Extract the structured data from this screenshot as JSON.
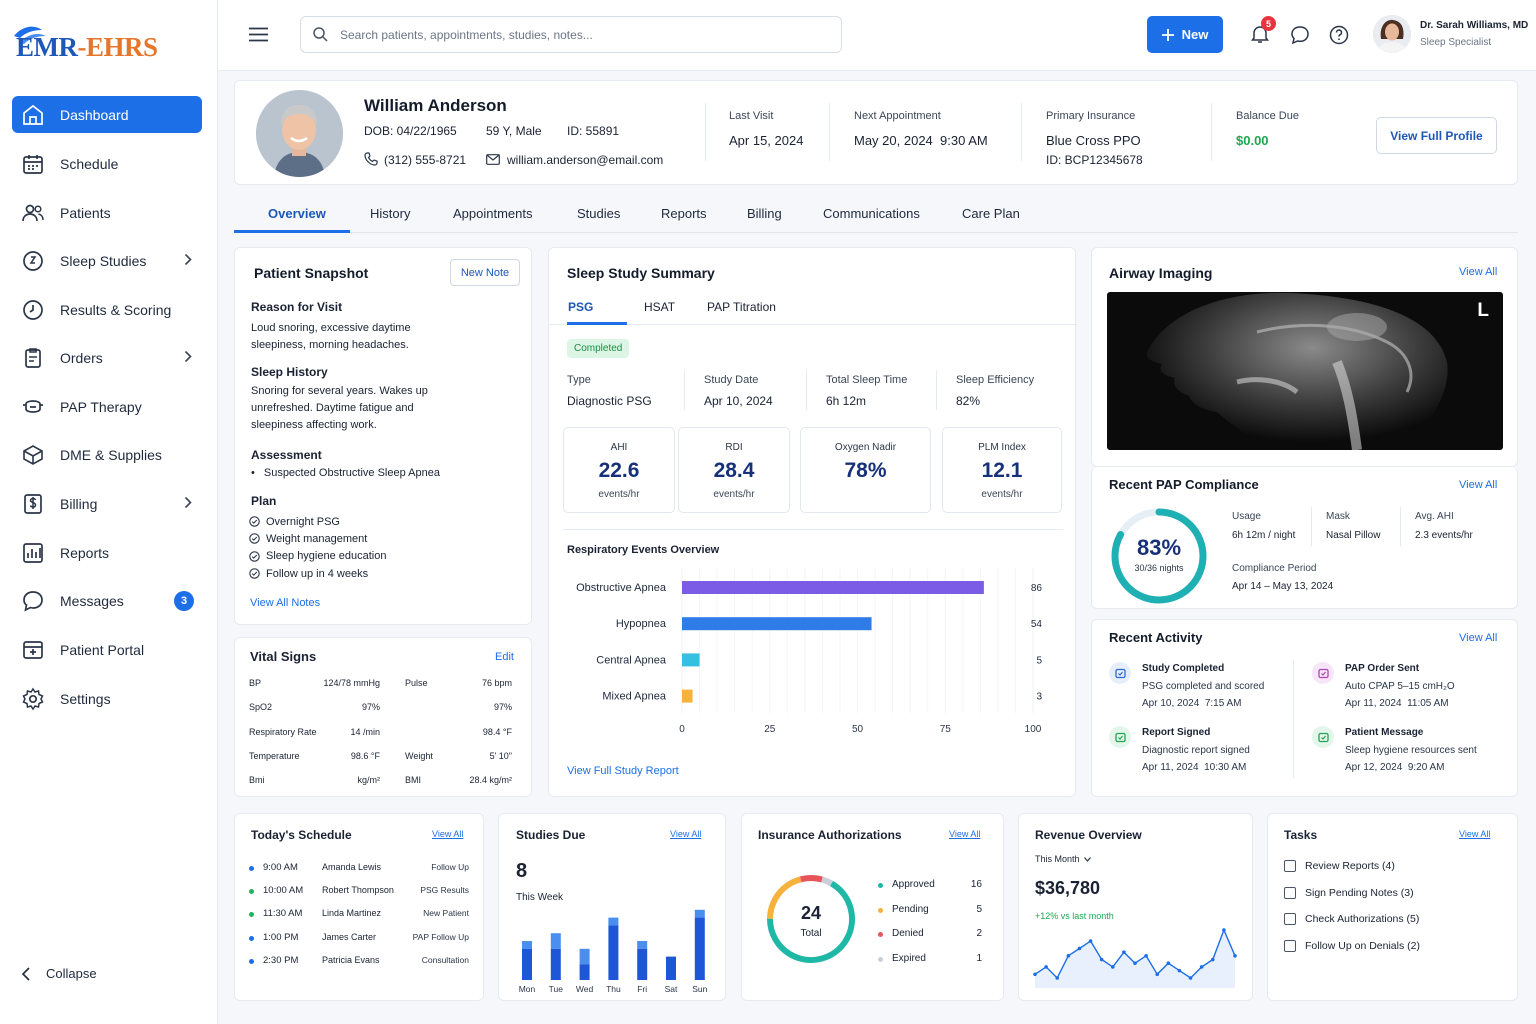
{
  "app": {
    "logo_text": "EMR-EHRS"
  },
  "sidebar": {
    "items": [
      {
        "label": "Dashboard",
        "icon": "home-icon"
      },
      {
        "label": "Schedule",
        "icon": "calendar-icon"
      },
      {
        "label": "Patients",
        "icon": "users-icon"
      },
      {
        "label": "Sleep Studies",
        "icon": "sleep-icon"
      },
      {
        "label": "Results & Scoring",
        "icon": "clock-icon"
      },
      {
        "label": "Orders",
        "icon": "clipboard-icon"
      },
      {
        "label": "PAP Therapy",
        "icon": "mask-icon"
      },
      {
        "label": "DME & Supplies",
        "icon": "box-icon"
      },
      {
        "label": "Billing",
        "icon": "dollar-icon"
      },
      {
        "label": "Reports",
        "icon": "bar-chart-icon"
      },
      {
        "label": "Messages",
        "icon": "chat-icon"
      },
      {
        "label": "Patient Portal",
        "icon": "portal-icon"
      },
      {
        "label": "Settings",
        "icon": "gear-icon"
      }
    ],
    "messages_badge": "3",
    "collapse_label": "Collapse"
  },
  "header": {
    "search_placeholder": "Search patients, appointments, studies, notes...",
    "new_button": "New",
    "notification_count": "5",
    "user_name": "Dr. Sarah Williams, MD",
    "user_role": "Sleep Specialist"
  },
  "patient": {
    "name": "William Anderson",
    "dob": "DOB: 04/22/1965",
    "age_sex": "59 Y, Male",
    "id": "ID: 55891",
    "phone": "(312) 555-8721",
    "email": "william.anderson@email.com",
    "last_visit_label": "Last Visit",
    "last_visit": "Apr 15, 2024",
    "next_appt_label": "Next Appointment",
    "next_appt": "May 20, 2024  9:30 AM",
    "insurance_label": "Primary Insurance",
    "insurance": "Blue Cross PPO",
    "insurance_id": "ID: BCP12345678",
    "balance_label": "Balance Due",
    "balance": "$0.00",
    "view_profile": "View Full Profile"
  },
  "tabs": [
    "Overview",
    "History",
    "Appointments",
    "Studies",
    "Reports",
    "Billing",
    "Communications",
    "Care Plan"
  ],
  "snapshot": {
    "title": "Patient Snapshot",
    "new_note": "New Note",
    "reason_title": "Reason for Visit",
    "reason_l1": "Loud snoring, excessive daytime",
    "reason_l2": "sleepiness, morning headaches.",
    "history_title": "Sleep History",
    "history_l1": "Snoring for several years. Wakes up",
    "history_l2": "unrefreshed. Daytime fatigue and",
    "history_l3": "sleepiness affecting work.",
    "assessment_title": "Assessment",
    "assessment_item": "Suspected Obstructive Sleep Apnea",
    "plan_title": "Plan",
    "plan": [
      "Overnight PSG",
      "Weight management",
      "Sleep hygiene education",
      "Follow up in 4 weeks"
    ],
    "view_all": "View All Notes"
  },
  "vitals": {
    "title": "Vital Signs",
    "edit": "Edit",
    "rows": [
      {
        "l1": "BP",
        "v1": "124/78 mmHg",
        "l2": "Pulse",
        "v2": "76 bpm"
      },
      {
        "l1": "SpO2",
        "v1": "97%",
        "l2": "",
        "v2": "97%"
      },
      {
        "l1": "Respiratory Rate",
        "v1": "14 /min",
        "l2": "",
        "v2": "98.4 °F"
      },
      {
        "l1": "Temperature",
        "v1": "98.6 °F",
        "l2": "Weight",
        "v2": "5' 10\""
      },
      {
        "l1": "Bmi",
        "v1": "kg/m²",
        "l2": "BMI",
        "v2": "28.4 kg/m²"
      }
    ]
  },
  "study": {
    "title": "Sleep Study Summary",
    "subtabs": [
      "PSG",
      "HSAT",
      "PAP Titration"
    ],
    "status": "Completed",
    "type_label": "Type",
    "type": "Diagnostic PSG",
    "date_label": "Study Date",
    "date": "Apr 10, 2024",
    "tst_label": "Total Sleep Time",
    "tst": "6h 12m",
    "eff_label": "Sleep Efficiency",
    "eff": "82%",
    "metrics": [
      {
        "label": "AHI",
        "value": "22.6",
        "unit": "events/hr"
      },
      {
        "label": "RDI",
        "value": "28.4",
        "unit": "events/hr"
      },
      {
        "label": "Oxygen Nadir",
        "value": "78%",
        "unit": ""
      },
      {
        "label": "PLM Index",
        "value": "12.1",
        "unit": "events/hr"
      }
    ],
    "chart_title": "Respiratory Events Overview",
    "view_report": "View Full Study Report"
  },
  "chart_data": {
    "type": "bar",
    "orientation": "horizontal",
    "title": "Respiratory Events Overview",
    "categories": [
      "Obstructive Apnea",
      "Hypopnea",
      "Central Apnea",
      "Mixed Apnea"
    ],
    "values": [
      86,
      54,
      5,
      3
    ],
    "colors": [
      "#7b5ce6",
      "#2f7ce8",
      "#34c0e0",
      "#f5b33d"
    ],
    "xlim": [
      0,
      100
    ],
    "xticks": [
      0,
      25,
      50,
      75,
      100
    ],
    "grid": true
  },
  "airway": {
    "title": "Airway Imaging",
    "view_all": "View All",
    "marker": "L"
  },
  "compliance": {
    "title": "Recent PAP Compliance",
    "view_all": "View All",
    "percent": "83%",
    "percent_value": 83,
    "nights": "30/36 nights",
    "usage_label": "Usage",
    "usage": "6h 12m / night",
    "mask_label": "Mask",
    "mask": "Nasal Pillow",
    "ahi_label": "Avg. AHI",
    "ahi": "2.3 events/hr",
    "period_label": "Compliance Period",
    "period": "Apr 14 – May 13, 2024"
  },
  "activity": {
    "title": "Recent Activity",
    "view_all": "View All",
    "items": [
      {
        "title": "Study Completed",
        "desc": "PSG completed and scored",
        "time": "Apr 10, 2024  7:15 AM"
      },
      {
        "title": "PAP Order Sent",
        "desc": "Auto CPAP 5–15 cmH₂O",
        "time": "Apr 11, 2024  11:05 AM"
      },
      {
        "title": "Report Signed",
        "desc": "Diagnostic report signed",
        "time": "Apr 11, 2024  10:30 AM"
      },
      {
        "title": "Patient Message",
        "desc": "Sleep hygiene resources sent",
        "time": "Apr 12, 2024  9:20 AM"
      }
    ]
  },
  "schedule": {
    "title": "Today's Schedule",
    "view_all": "View All",
    "items": [
      {
        "time": "9:00 AM",
        "name": "Amanda Lewis",
        "type": "Follow Up",
        "color": "#1d6fe8"
      },
      {
        "time": "10:00 AM",
        "name": "Robert Thompson",
        "type": "PSG Results",
        "color": "#22b35e"
      },
      {
        "time": "11:30 AM",
        "name": "Linda Martinez",
        "type": "New Patient",
        "color": "#22b35e"
      },
      {
        "time": "1:00 PM",
        "name": "James Carter",
        "type": "PAP Follow Up",
        "color": "#1d6fe8"
      },
      {
        "time": "2:30 PM",
        "name": "Patricia Evans",
        "type": "Consultation",
        "color": "#1d6fe8"
      }
    ]
  },
  "studies_due": {
    "title": "Studies Due",
    "view_all": "View All",
    "count": "8",
    "subtitle": "This Week",
    "days": [
      "Mon",
      "Tue",
      "Wed",
      "Thu",
      "Fri",
      "Sat",
      "Sun"
    ],
    "total": [
      5,
      6,
      4,
      8,
      5,
      3,
      9
    ],
    "dark": [
      4,
      4,
      2,
      7,
      4,
      3,
      8
    ]
  },
  "auth": {
    "title": "Insurance Authorizations",
    "view_all": "View All",
    "total": "24",
    "total_label": "Total",
    "items": [
      {
        "label": "Approved",
        "count": "16",
        "value": 16,
        "color": "#1fb8a6"
      },
      {
        "label": "Pending",
        "count": "5",
        "value": 5,
        "color": "#f5b33d"
      },
      {
        "label": "Denied",
        "count": "2",
        "value": 2,
        "color": "#e8545c"
      },
      {
        "label": "Expired",
        "count": "1",
        "value": 1,
        "color": "#c9cfd9"
      }
    ]
  },
  "revenue": {
    "title": "Revenue Overview",
    "period": "This Month",
    "amount": "$36,780",
    "change": "+12% vs last month",
    "trend": [
      6,
      8,
      5,
      11,
      13,
      15,
      10,
      8,
      12,
      9,
      11,
      6,
      9,
      7,
      5,
      8,
      10,
      18,
      11
    ]
  },
  "tasks": {
    "title": "Tasks",
    "view_all": "View All",
    "items": [
      "Review Reports (4)",
      "Sign Pending Notes (3)",
      "Check Authorizations (5)",
      "Follow Up on Denials (2)"
    ]
  }
}
